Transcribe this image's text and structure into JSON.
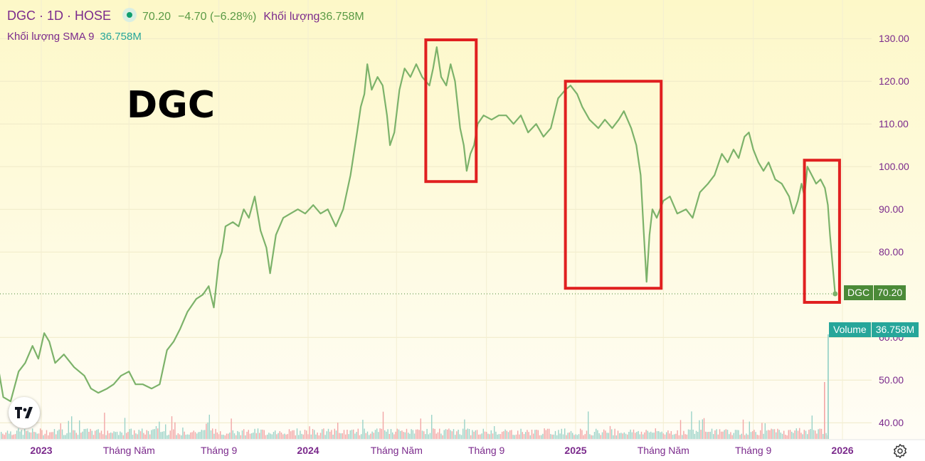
{
  "legend": {
    "symbol": "DGC · 1D · HOSE",
    "value": "70.20",
    "change": "−4.70 (−6.28%)",
    "volume_label": "Khối lượng",
    "volume_value": "36.758M",
    "sma_label": "Khối lượng SMA 9",
    "sma_value": "36.758M"
  },
  "watermark": "DGC",
  "price_tag": {
    "name": "DGC",
    "value": "70.20"
  },
  "volume_tag": {
    "name": "Volume",
    "value": "36.758M"
  },
  "colors": {
    "line": "#7cb26a",
    "highlight_box": "#e02020",
    "volume_up": "#9bd3c8",
    "volume_down": "#f2a6a6",
    "axis_text": "#7b2a8c",
    "last_price": "#4b8a38",
    "volume_accent": "#26a69a"
  },
  "icons": {
    "logo": "tradingview-logo-icon",
    "settings": "settings-gear-icon"
  },
  "chart_data": {
    "type": "line",
    "y_ticks": [
      130,
      120,
      110,
      100,
      90,
      80,
      60,
      50,
      40
    ],
    "x_ticks": [
      {
        "label": "2023",
        "date": "2023-01-01",
        "bold": true
      },
      {
        "label": "Tháng Năm",
        "date": "2023-05-01",
        "bold": false
      },
      {
        "label": "Tháng 9",
        "date": "2023-09-01",
        "bold": false
      },
      {
        "label": "2024",
        "date": "2024-01-01",
        "bold": true
      },
      {
        "label": "Tháng Năm",
        "date": "2024-05-01",
        "bold": false
      },
      {
        "label": "Tháng 9",
        "date": "2024-09-01",
        "bold": false
      },
      {
        "label": "2025",
        "date": "2025-01-01",
        "bold": true
      },
      {
        "label": "Tháng Năm",
        "date": "2025-05-01",
        "bold": false
      },
      {
        "label": "Tháng 9",
        "date": "2025-09-01",
        "bold": false
      },
      {
        "label": "2026",
        "date": "2026-01-01",
        "bold": true
      }
    ],
    "series": [
      {
        "points": [
          [
            "2022-10-25",
            63
          ],
          [
            "2022-11-02",
            54
          ],
          [
            "2022-11-10",
            46
          ],
          [
            "2022-11-20",
            45
          ],
          [
            "2022-12-01",
            52
          ],
          [
            "2022-12-10",
            54
          ],
          [
            "2022-12-20",
            58
          ],
          [
            "2022-12-28",
            55
          ],
          [
            "2023-01-05",
            61
          ],
          [
            "2023-01-12",
            59
          ],
          [
            "2023-01-20",
            54
          ],
          [
            "2023-02-01",
            56
          ],
          [
            "2023-02-15",
            53
          ],
          [
            "2023-03-01",
            51
          ],
          [
            "2023-03-10",
            48
          ],
          [
            "2023-03-20",
            47
          ],
          [
            "2023-04-01",
            48
          ],
          [
            "2023-04-10",
            49
          ],
          [
            "2023-04-20",
            51
          ],
          [
            "2023-05-01",
            52
          ],
          [
            "2023-05-10",
            49
          ],
          [
            "2023-05-20",
            49
          ],
          [
            "2023-06-01",
            48
          ],
          [
            "2023-06-12",
            49
          ],
          [
            "2023-06-22",
            57
          ],
          [
            "2023-07-01",
            59
          ],
          [
            "2023-07-10",
            62
          ],
          [
            "2023-07-20",
            66
          ],
          [
            "2023-08-01",
            69
          ],
          [
            "2023-08-10",
            70
          ],
          [
            "2023-08-18",
            72
          ],
          [
            "2023-08-25",
            67
          ],
          [
            "2023-09-01",
            78
          ],
          [
            "2023-09-05",
            80
          ],
          [
            "2023-09-10",
            86
          ],
          [
            "2023-09-20",
            87
          ],
          [
            "2023-09-28",
            86
          ],
          [
            "2023-10-05",
            90
          ],
          [
            "2023-10-12",
            88
          ],
          [
            "2023-10-20",
            93
          ],
          [
            "2023-10-28",
            85
          ],
          [
            "2023-11-05",
            81
          ],
          [
            "2023-11-10",
            75
          ],
          [
            "2023-11-18",
            84
          ],
          [
            "2023-11-28",
            88
          ],
          [
            "2023-12-08",
            89
          ],
          [
            "2023-12-18",
            90
          ],
          [
            "2023-12-28",
            89
          ],
          [
            "2024-01-08",
            91
          ],
          [
            "2024-01-18",
            89
          ],
          [
            "2024-01-28",
            90
          ],
          [
            "2024-02-08",
            86
          ],
          [
            "2024-02-18",
            90
          ],
          [
            "2024-02-28",
            98
          ],
          [
            "2024-03-08",
            108
          ],
          [
            "2024-03-13",
            114
          ],
          [
            "2024-03-18",
            117
          ],
          [
            "2024-03-22",
            124
          ],
          [
            "2024-03-28",
            118
          ],
          [
            "2024-04-05",
            121
          ],
          [
            "2024-04-12",
            119
          ],
          [
            "2024-04-18",
            112
          ],
          [
            "2024-04-22",
            105
          ],
          [
            "2024-04-28",
            108
          ],
          [
            "2024-05-05",
            118
          ],
          [
            "2024-05-12",
            123
          ],
          [
            "2024-05-20",
            121
          ],
          [
            "2024-05-28",
            124
          ],
          [
            "2024-06-05",
            121
          ],
          [
            "2024-06-15",
            119
          ],
          [
            "2024-06-20",
            123
          ],
          [
            "2024-06-25",
            128
          ],
          [
            "2024-07-01",
            121
          ],
          [
            "2024-07-08",
            119
          ],
          [
            "2024-07-14",
            124
          ],
          [
            "2024-07-20",
            120
          ],
          [
            "2024-07-27",
            109
          ],
          [
            "2024-08-01",
            105
          ],
          [
            "2024-08-05",
            99
          ],
          [
            "2024-08-10",
            103
          ],
          [
            "2024-08-15",
            105
          ],
          [
            "2024-08-20",
            110
          ],
          [
            "2024-08-28",
            112
          ],
          [
            "2024-09-08",
            111
          ],
          [
            "2024-09-18",
            112
          ],
          [
            "2024-09-28",
            112
          ],
          [
            "2024-10-08",
            110
          ],
          [
            "2024-10-18",
            112
          ],
          [
            "2024-10-28",
            108
          ],
          [
            "2024-11-08",
            110
          ],
          [
            "2024-11-18",
            107
          ],
          [
            "2024-11-28",
            109
          ],
          [
            "2024-12-08",
            116
          ],
          [
            "2024-12-18",
            118
          ],
          [
            "2024-12-25",
            119
          ],
          [
            "2025-01-03",
            117
          ],
          [
            "2025-01-10",
            114
          ],
          [
            "2025-01-20",
            111
          ],
          [
            "2025-02-01",
            109
          ],
          [
            "2025-02-10",
            111
          ],
          [
            "2025-02-20",
            109
          ],
          [
            "2025-03-01",
            111
          ],
          [
            "2025-03-08",
            113
          ],
          [
            "2025-03-18",
            109
          ],
          [
            "2025-03-25",
            105
          ],
          [
            "2025-03-31",
            98
          ],
          [
            "2025-04-04",
            85
          ],
          [
            "2025-04-08",
            73
          ],
          [
            "2025-04-12",
            84
          ],
          [
            "2025-04-16",
            90
          ],
          [
            "2025-04-22",
            88
          ],
          [
            "2025-05-01",
            92
          ],
          [
            "2025-05-10",
            93
          ],
          [
            "2025-05-20",
            89
          ],
          [
            "2025-06-01",
            90
          ],
          [
            "2025-06-10",
            88
          ],
          [
            "2025-06-20",
            94
          ],
          [
            "2025-07-01",
            96
          ],
          [
            "2025-07-10",
            98
          ],
          [
            "2025-07-20",
            103
          ],
          [
            "2025-07-28",
            101
          ],
          [
            "2025-08-05",
            104
          ],
          [
            "2025-08-12",
            102
          ],
          [
            "2025-08-20",
            107
          ],
          [
            "2025-08-26",
            108
          ],
          [
            "2025-09-01",
            104
          ],
          [
            "2025-09-08",
            101
          ],
          [
            "2025-09-15",
            99
          ],
          [
            "2025-09-22",
            101
          ],
          [
            "2025-10-01",
            97
          ],
          [
            "2025-10-10",
            96
          ],
          [
            "2025-10-20",
            93
          ],
          [
            "2025-10-26",
            89
          ],
          [
            "2025-11-01",
            92
          ],
          [
            "2025-11-06",
            96
          ],
          [
            "2025-11-10",
            93
          ],
          [
            "2025-11-14",
            100
          ],
          [
            "2025-11-20",
            98
          ],
          [
            "2025-11-26",
            96
          ],
          [
            "2025-12-02",
            97
          ],
          [
            "2025-12-08",
            95
          ],
          [
            "2025-12-12",
            91
          ],
          [
            "2025-12-15",
            84
          ],
          [
            "2025-12-18",
            78
          ],
          [
            "2025-12-22",
            70.2
          ]
        ]
      }
    ],
    "last_value": 70.2,
    "highlight_boxes": [
      {
        "x0": "2024-06-10",
        "x1": "2024-08-18",
        "y0": 96.5,
        "y1": 129.7
      },
      {
        "x0": "2024-12-18",
        "x1": "2025-04-28",
        "y0": 71.5,
        "y1": 120
      },
      {
        "x0": "2025-11-10",
        "x1": "2025-12-28",
        "y0": 68.2,
        "y1": 101.5
      }
    ]
  }
}
